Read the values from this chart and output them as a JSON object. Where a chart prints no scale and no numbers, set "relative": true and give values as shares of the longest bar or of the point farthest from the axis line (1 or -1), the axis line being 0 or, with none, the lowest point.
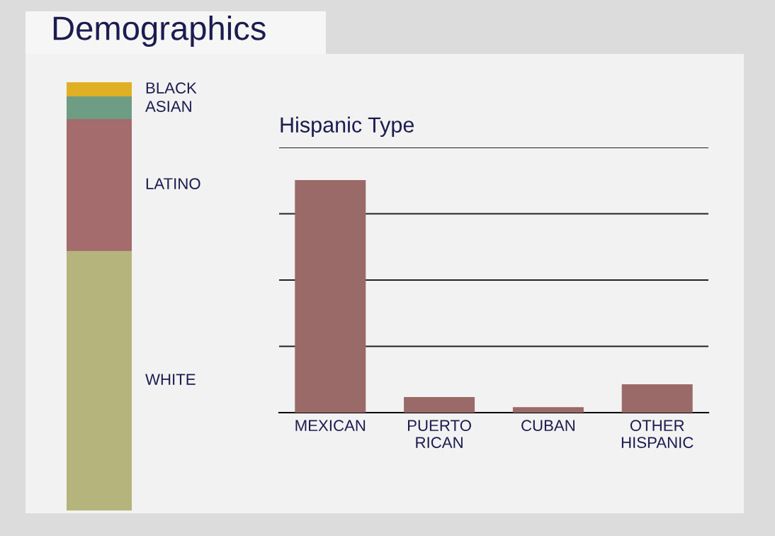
{
  "chart_data": [
    {
      "type": "bar",
      "title": "Demographics",
      "stacked": true,
      "relative": true,
      "tick_labels": false,
      "categories": [
        null
      ],
      "series": [
        {
          "name": "WHITE",
          "color": "#b4b47c",
          "values": [
            0.606
          ]
        },
        {
          "name": "LATINO",
          "color": "#a46c6c",
          "values": [
            0.308
          ]
        },
        {
          "name": "ASIAN",
          "color": "#6e9c84",
          "values": [
            0.053
          ]
        },
        {
          "name": "BLACK",
          "color": "#e0b024",
          "values": [
            0.033
          ]
        }
      ]
    },
    {
      "type": "bar",
      "title": "Hispanic Type",
      "relative": true,
      "tick_labels": "x",
      "grid": "y",
      "categories": [
        "MEXICAN",
        "PUERTO\nRICAN",
        "CUBAN",
        "OTHER\nHISPANIC"
      ],
      "values": [
        1,
        0.067,
        0.024,
        0.122
      ],
      "color": "#9a6a68"
    }
  ]
}
